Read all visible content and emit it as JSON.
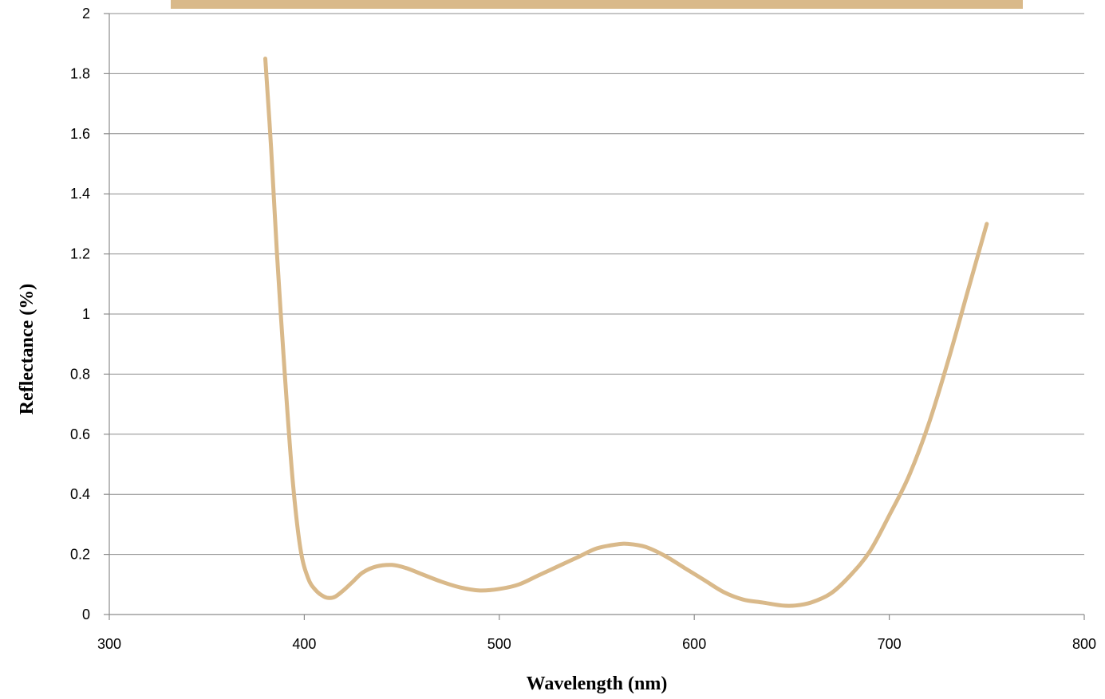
{
  "chart_data": {
    "type": "line",
    "title": "",
    "xlabel": "Wavelength (nm)",
    "ylabel": "Reflectance (%)",
    "xlim": [
      300,
      800
    ],
    "ylim": [
      0,
      2
    ],
    "x_ticks": [
      300,
      400,
      500,
      600,
      700,
      800
    ],
    "y_ticks": [
      0,
      0.2,
      0.4,
      0.6,
      0.8,
      1,
      1.2,
      1.4,
      1.6,
      1.8,
      2
    ],
    "x_tick_labels": [
      "300",
      "400",
      "500",
      "600",
      "700",
      "800"
    ],
    "y_tick_labels": [
      "0",
      "0.2",
      "0.4",
      "0.6",
      "0.8",
      "1",
      "1.2",
      "1.4",
      "1.6",
      "1.8",
      "2"
    ],
    "grid": "horizontal",
    "legend_color": "#d9b98a",
    "series": [
      {
        "color": "#d9b98a",
        "x": [
          380,
          383,
          386,
          390,
          394,
          398,
          402,
          406,
          410,
          413,
          416,
          420,
          425,
          430,
          437,
          445,
          452,
          460,
          470,
          480,
          490,
          500,
          510,
          520,
          530,
          540,
          550,
          560,
          566,
          575,
          585,
          595,
          605,
          615,
          625,
          635,
          645,
          652,
          660,
          670,
          680,
          690,
          700,
          710,
          720,
          730,
          740,
          750
        ],
        "y": [
          1.85,
          1.55,
          1.2,
          0.8,
          0.45,
          0.22,
          0.12,
          0.08,
          0.06,
          0.055,
          0.06,
          0.08,
          0.11,
          0.14,
          0.16,
          0.165,
          0.155,
          0.135,
          0.11,
          0.09,
          0.08,
          0.085,
          0.1,
          0.13,
          0.16,
          0.19,
          0.22,
          0.233,
          0.235,
          0.225,
          0.195,
          0.155,
          0.115,
          0.075,
          0.05,
          0.04,
          0.03,
          0.03,
          0.04,
          0.07,
          0.13,
          0.21,
          0.33,
          0.46,
          0.63,
          0.84,
          1.07,
          1.3
        ]
      }
    ]
  }
}
